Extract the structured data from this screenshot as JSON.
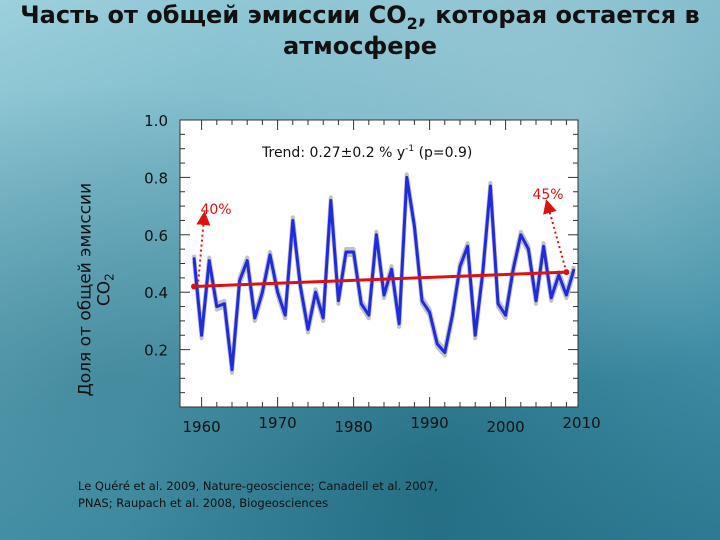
{
  "title": {
    "line1_main": "Часть от общей эмиссии CO",
    "line1_sub": "2",
    "line1_tail": ", которая остается в",
    "line2": "атмосфере"
  },
  "citation": {
    "line1": "Le Quéré et al. 2009, Nature-geoscience; Canadell et al. 2007,",
    "line2": "PNAS; Raupach et al. 2008, Biogeosciences"
  },
  "colors": {
    "series": "#1f2be0",
    "uncertainty": "#c0c0c8",
    "trend": "#e01010",
    "annotation": "#e01010"
  },
  "chart_data": {
    "type": "line",
    "ylabel": "Доля от общей эмиссии CO2",
    "ylabel_main": "Доля от общей эмиссии",
    "ylabel_line2": "CO",
    "ylabel_sub": "2",
    "xlim": [
      1959,
      2009
    ],
    "ylim": [
      0.0,
      1.0
    ],
    "x_ticks": [
      1960,
      1970,
      1980,
      1990,
      2000,
      2010
    ],
    "y_ticks": [
      0.2,
      0.4,
      0.6,
      0.8,
      1.0
    ],
    "y_tick_labels": [
      "0.2",
      "0.4",
      "0.6",
      "0.8",
      "1.0"
    ],
    "grid": false,
    "trend_label": {
      "prefix": "Trend:  0.27±0.2 % y",
      "sup": "-1",
      "suffix": "  (p=0.9)"
    },
    "annotations": [
      {
        "text": "40%",
        "x": 1959.5,
        "y": 0.42
      },
      {
        "text": "45%",
        "x": 2008.0,
        "y": 0.47
      }
    ],
    "series": [
      {
        "x": [
          1959,
          1960,
          1961,
          1962,
          1963,
          1964,
          1965,
          1966,
          1967,
          1968,
          1969,
          1970,
          1971,
          1972,
          1973,
          1974,
          1975,
          1976,
          1977,
          1978,
          1979,
          1980,
          1981,
          1982,
          1983,
          1984,
          1985,
          1986,
          1987,
          1988,
          1989,
          1990,
          1991,
          1992,
          1993,
          1994,
          1995,
          1996,
          1997,
          1998,
          1999,
          2000,
          2001,
          2002,
          2003,
          2004,
          2005,
          2006,
          2007,
          2008,
          2009
        ],
        "values": [
          0.52,
          0.25,
          0.51,
          0.35,
          0.36,
          0.13,
          0.44,
          0.51,
          0.31,
          0.4,
          0.53,
          0.4,
          0.32,
          0.65,
          0.42,
          0.27,
          0.4,
          0.31,
          0.72,
          0.37,
          0.54,
          0.54,
          0.36,
          0.32,
          0.6,
          0.39,
          0.48,
          0.29,
          0.8,
          0.63,
          0.37,
          0.33,
          0.22,
          0.19,
          0.32,
          0.49,
          0.56,
          0.25,
          0.47,
          0.77,
          0.36,
          0.32,
          0.48,
          0.6,
          0.55,
          0.37,
          0.56,
          0.38,
          0.46,
          0.39,
          0.48
        ]
      }
    ],
    "trend": {
      "x": [
        1959,
        2008
      ],
      "values": [
        0.42,
        0.47
      ]
    }
  }
}
